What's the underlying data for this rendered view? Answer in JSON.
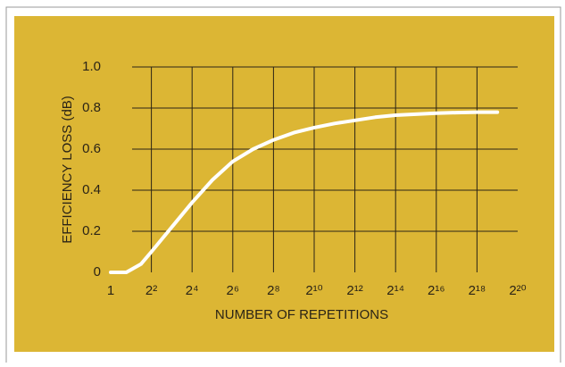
{
  "chart_data": {
    "type": "line",
    "x_label": "NUMBER OF REPETITIONS",
    "y_label": "EFFICIENCY LOSS (dB)",
    "x": [
      1,
      1.7,
      2.8,
      4,
      8,
      16,
      32,
      64,
      128,
      256,
      512,
      1024,
      2048,
      4096,
      8192,
      16384,
      32768,
      65536,
      131072,
      262144,
      524288
    ],
    "series": [
      {
        "color": "#ffffff",
        "values": [
          0,
          0,
          0.04,
          0.1,
          0.22,
          0.34,
          0.45,
          0.54,
          0.6,
          0.645,
          0.68,
          0.705,
          0.725,
          0.74,
          0.755,
          0.765,
          0.77,
          0.775,
          0.778,
          0.78,
          0.78
        ]
      }
    ],
    "xscale": "log",
    "xlog_base": 2,
    "xlim": [
      1,
      1048576
    ],
    "xticks": [
      1,
      {
        "value": 4,
        "label": "2²"
      },
      {
        "value": 16,
        "label": "2⁴"
      },
      {
        "value": 64,
        "label": "2⁶"
      },
      {
        "value": 256,
        "label": "2⁸"
      },
      {
        "value": 1024,
        "label": "2¹⁰"
      },
      {
        "value": 4096,
        "label": "2¹²"
      },
      {
        "value": 16384,
        "label": "2¹⁴"
      },
      {
        "value": 65536,
        "label": "2¹⁶"
      },
      {
        "value": 262144,
        "label": "2¹⁸"
      },
      {
        "value": 1048576,
        "label": "2²⁰"
      }
    ],
    "ylim": [
      0,
      1.0
    ],
    "yticks": [
      0,
      0.2,
      0.4,
      0.6,
      0.8,
      {
        "value": 1.0,
        "label": "1.0"
      }
    ],
    "grid": true
  }
}
